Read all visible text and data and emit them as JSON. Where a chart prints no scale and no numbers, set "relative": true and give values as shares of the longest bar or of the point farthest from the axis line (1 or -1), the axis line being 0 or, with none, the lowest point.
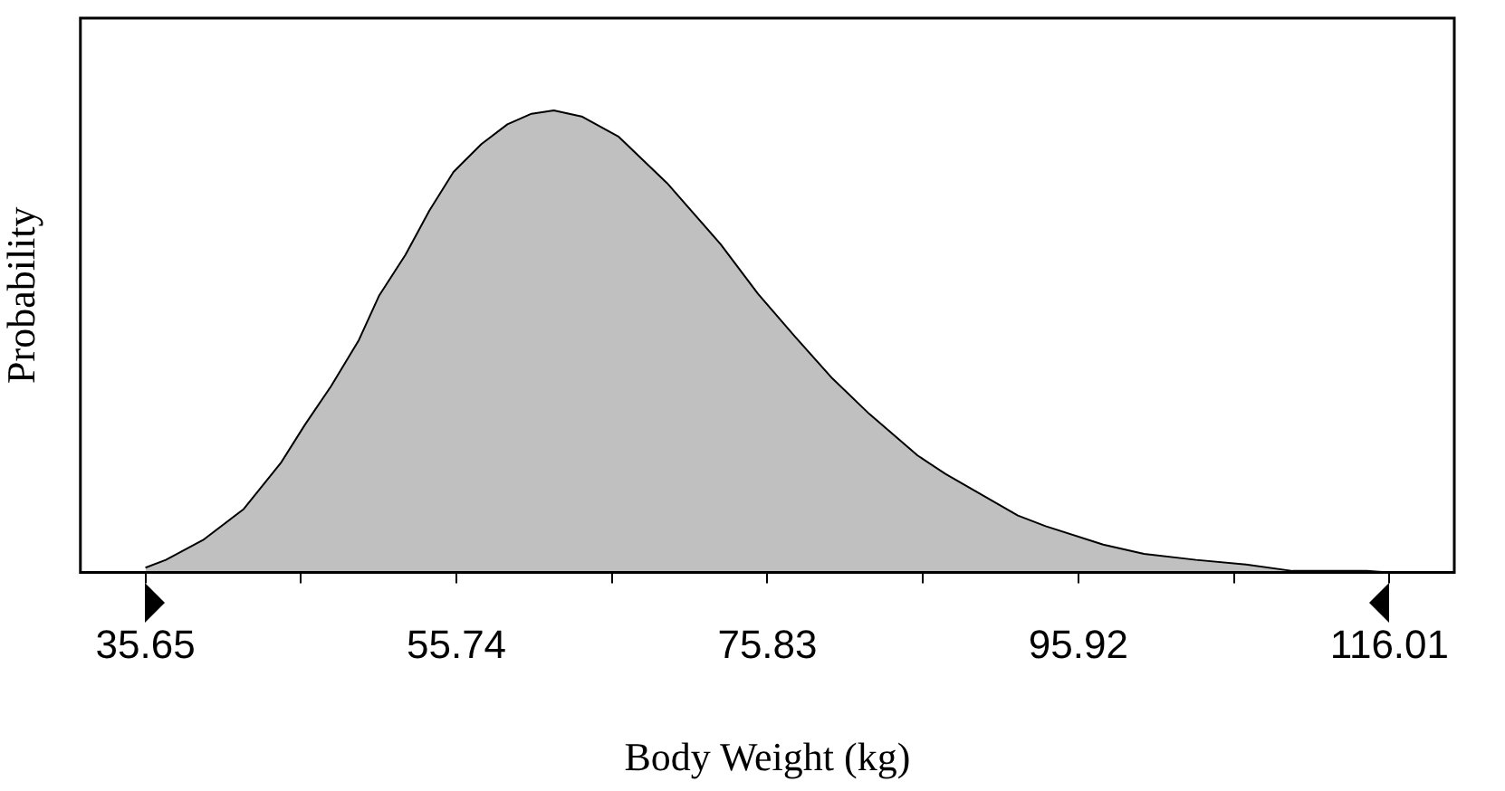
{
  "chart_data": {
    "type": "area",
    "relative": true,
    "xlabel": "Body Weight (kg)",
    "ylabel": "Probability",
    "color": "#c0c0c0",
    "x": [
      35.65,
      36.97,
      39.37,
      42.0,
      44.4,
      45.96,
      47.64,
      49.44,
      50.76,
      52.44,
      53.99,
      55.55,
      57.35,
      59.03,
      60.59,
      62.03,
      63.83,
      66.23,
      69.34,
      72.82,
      75.22,
      77.62,
      80.02,
      82.41,
      85.53,
      87.33,
      92.01,
      93.8,
      97.52,
      100.16,
      103.52,
      106.75,
      109.75,
      114.55,
      116.01
    ],
    "values": [
      0.01,
      0.027,
      0.07,
      0.137,
      0.237,
      0.32,
      0.403,
      0.503,
      0.6,
      0.687,
      0.783,
      0.867,
      0.927,
      0.97,
      0.993,
      1.0,
      0.987,
      0.943,
      0.843,
      0.71,
      0.603,
      0.51,
      0.42,
      0.343,
      0.253,
      0.213,
      0.123,
      0.1,
      0.06,
      0.04,
      0.027,
      0.017,
      0.003,
      0.003,
      0
    ],
    "xlim": [
      31.45,
      120.2
    ],
    "xticks": [
      35.65,
      {
        "value": 45.695,
        "label": null
      },
      55.74,
      {
        "value": 65.785,
        "label": null
      },
      75.83,
      {
        "value": 85.875,
        "label": null
      },
      95.92,
      {
        "value": 105.965,
        "label": null
      },
      116.01
    ],
    "grid": false,
    "legend": false
  }
}
